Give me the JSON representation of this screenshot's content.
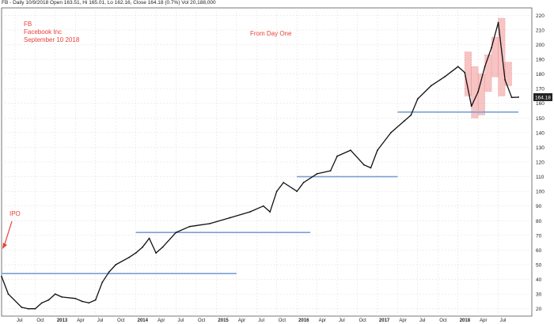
{
  "header": {
    "text": "FB - Daily 10/9/2018 Open 163.51, Hi 165.01, Lo 162.16, Close 164.18 (0.7%) Vol 20,188,000"
  },
  "annotations": {
    "ticker": "FB",
    "company": "Facebook Inc",
    "date": "September 10 2018",
    "subtitle": "From Day One",
    "ipo": "IPO"
  },
  "colors": {
    "price": "#111111",
    "support_line": "#7aa0d4",
    "highlight": "#f08a8a",
    "annotation": "#e8413a",
    "last_price_box": "#222222"
  },
  "chart_data": {
    "type": "line",
    "title": "",
    "series": [
      {
        "x": [
          "2012-05",
          "2012-06",
          "2012-08",
          "2012-09",
          "2012-10",
          "2012-11",
          "2012-12",
          "2013-01",
          "2013-02",
          "2013-04",
          "2013-05",
          "2013-06",
          "2013-07",
          "2013-08",
          "2013-09",
          "2013-10",
          "2013-12",
          "2014-01",
          "2014-02",
          "2014-03",
          "2014-04",
          "2014-05",
          "2014-07",
          "2014-09",
          "2014-12",
          "2015-03",
          "2015-06",
          "2015-08",
          "2015-09",
          "2015-10",
          "2015-11",
          "2016-01",
          "2016-02",
          "2016-04",
          "2016-06",
          "2016-07",
          "2016-09",
          "2016-11",
          "2016-12",
          "2017-01",
          "2017-03",
          "2017-05",
          "2017-06",
          "2017-07",
          "2017-09",
          "2017-11",
          "2018-01",
          "2018-02",
          "2018-03",
          "2018-04",
          "2018-05",
          "2018-06",
          "2018-07",
          "2018-08",
          "2018-09",
          "2018-10"
        ],
        "values": [
          42,
          30,
          21,
          20,
          20,
          24,
          26,
          30,
          28,
          27,
          25,
          24,
          26,
          38,
          45,
          50,
          55,
          58,
          62,
          68,
          58,
          62,
          72,
          76,
          78,
          82,
          86,
          90,
          86,
          100,
          106,
          100,
          106,
          112,
          114,
          124,
          128,
          118,
          116,
          128,
          140,
          148,
          152,
          163,
          172,
          178,
          185,
          181,
          158,
          168,
          185,
          198,
          215,
          176,
          164,
          164.18
        ]
      }
    ],
    "xlabel": "",
    "ylabel": "",
    "ylim": [
      15,
      225
    ],
    "y_ticks": [
      20,
      30,
      40,
      50,
      60,
      70,
      80,
      90,
      100,
      110,
      120,
      130,
      140,
      150,
      160,
      170,
      180,
      190,
      200,
      210,
      220
    ],
    "x_ticks": [
      "Jul",
      "Oct",
      "2013",
      "Apr",
      "Jul",
      "Oct",
      "2014",
      "Apr",
      "Jul",
      "Oct",
      "2015",
      "Apr",
      "Jul",
      "Oct",
      "2016",
      "Apr",
      "Jul",
      "Oct",
      "2017",
      "Apr",
      "Jul",
      "Oct",
      "2018",
      "Apr",
      "Jul"
    ],
    "x_tick_dates": [
      "2012-07",
      "2012-10",
      "2013-01",
      "2013-04",
      "2013-07",
      "2013-10",
      "2014-01",
      "2014-04",
      "2014-07",
      "2014-10",
      "2015-01",
      "2015-04",
      "2015-07",
      "2015-10",
      "2016-01",
      "2016-04",
      "2016-07",
      "2016-10",
      "2017-01",
      "2017-04",
      "2017-07",
      "2017-10",
      "2018-01",
      "2018-04",
      "2018-07"
    ],
    "x_range": [
      "2012-05",
      "2018-12"
    ],
    "support_lines": [
      {
        "y": 44,
        "from": "2012-05",
        "to": "2015-04"
      },
      {
        "y": 72,
        "from": "2014-01",
        "to": "2016-03"
      },
      {
        "y": 110,
        "from": "2016-01",
        "to": "2017-04"
      },
      {
        "y": 154,
        "from": "2017-04",
        "to": "2018-10"
      }
    ],
    "highlight_boxes": [
      {
        "from": "2018-02",
        "to": "2018-03",
        "ylow": 165,
        "yhigh": 195
      },
      {
        "from": "2018-03",
        "to": "2018-04",
        "ylow": 150,
        "yhigh": 185
      },
      {
        "from": "2018-04",
        "to": "2018-05",
        "ylow": 152,
        "yhigh": 180
      },
      {
        "from": "2018-05",
        "to": "2018-06",
        "ylow": 168,
        "yhigh": 193
      },
      {
        "from": "2018-06",
        "to": "2018-07",
        "ylow": 178,
        "yhigh": 205
      },
      {
        "from": "2018-07",
        "to": "2018-08",
        "ylow": 165,
        "yhigh": 218
      },
      {
        "from": "2018-08",
        "to": "2018-09",
        "ylow": 172,
        "yhigh": 188
      }
    ],
    "last_price": "164.18",
    "grid": true
  }
}
